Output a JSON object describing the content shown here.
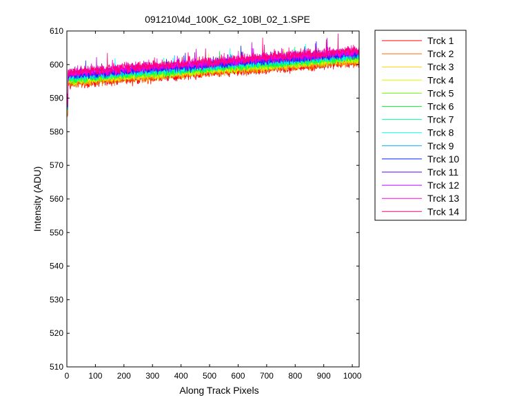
{
  "chart_data": {
    "type": "line",
    "title": "091210\\4d_100K_G2_10Bl_02_1.SPE",
    "xlabel": "Along Track Pixels",
    "ylabel": "Intensity (ADU)",
    "xlim": [
      0,
      1024
    ],
    "ylim": [
      510,
      610
    ],
    "xticks": [
      0,
      100,
      200,
      300,
      400,
      500,
      600,
      700,
      800,
      900,
      1000
    ],
    "yticks": [
      510,
      520,
      530,
      540,
      550,
      560,
      570,
      580,
      590,
      600,
      610
    ],
    "grid": false,
    "legend": {
      "placement": "outside-right"
    },
    "series": [
      {
        "name": "Trck 1",
        "color": "#ff0000",
        "start": 594.0,
        "end": 600.5,
        "noise": 1.6
      },
      {
        "name": "Trck 2",
        "color": "#ff6a00",
        "start": 594.4,
        "end": 600.9,
        "noise": 1.6
      },
      {
        "name": "Trck 3",
        "color": "#ffd200",
        "start": 594.8,
        "end": 601.3,
        "noise": 1.6
      },
      {
        "name": "Trck 4",
        "color": "#ccff00",
        "start": 595.1,
        "end": 601.6,
        "noise": 1.6
      },
      {
        "name": "Trck 5",
        "color": "#66ff00",
        "start": 595.4,
        "end": 601.9,
        "noise": 1.6
      },
      {
        "name": "Trck 6",
        "color": "#00ff33",
        "start": 595.7,
        "end": 602.2,
        "noise": 1.6
      },
      {
        "name": "Trck 7",
        "color": "#00ff99",
        "start": 596.0,
        "end": 602.5,
        "noise": 1.6
      },
      {
        "name": "Trck 8",
        "color": "#00ffee",
        "start": 596.3,
        "end": 602.8,
        "noise": 1.6
      },
      {
        "name": "Trck 9",
        "color": "#00aaff",
        "start": 596.5,
        "end": 603.0,
        "noise": 1.6
      },
      {
        "name": "Trck 10",
        "color": "#0022ff",
        "start": 596.8,
        "end": 603.3,
        "noise": 1.6
      },
      {
        "name": "Trck 11",
        "color": "#5500ff",
        "start": 597.0,
        "end": 603.5,
        "noise": 1.6
      },
      {
        "name": "Trck 12",
        "color": "#bb00ff",
        "start": 597.3,
        "end": 603.8,
        "noise": 1.7
      },
      {
        "name": "Trck 13",
        "color": "#ff00dd",
        "start": 597.5,
        "end": 604.0,
        "noise": 1.8
      },
      {
        "name": "Trck 14",
        "color": "#ff0077",
        "start": 597.8,
        "end": 604.3,
        "noise": 1.9
      }
    ]
  }
}
